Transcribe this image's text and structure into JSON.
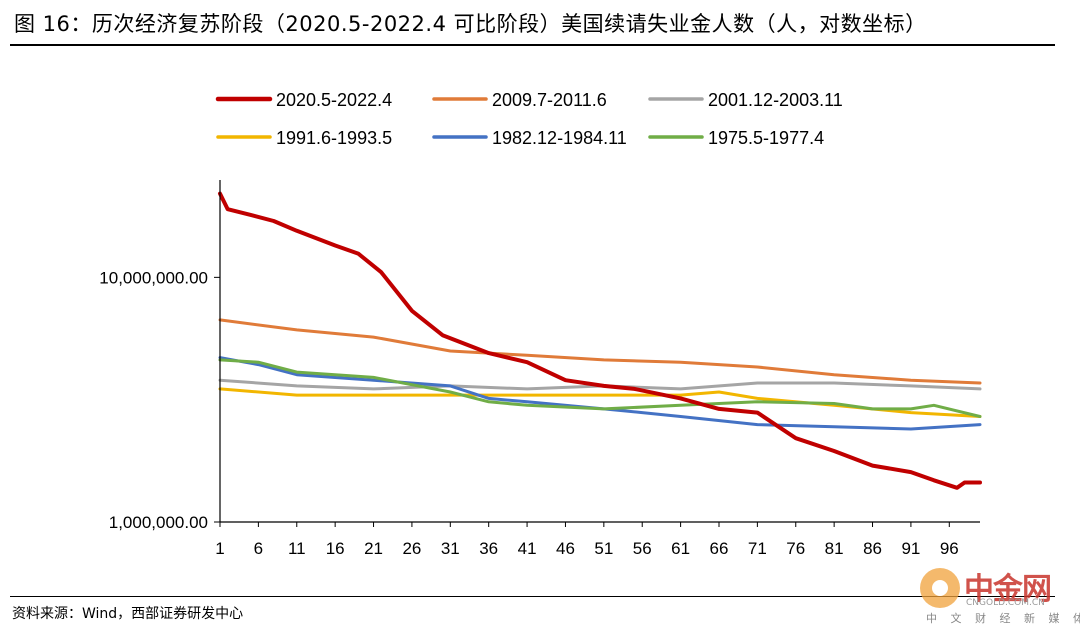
{
  "header": {
    "title": "图 16：历次经济复苏阶段（2020.5-2022.4 可比阶段）美国续请失业金人数（人，对数坐标）"
  },
  "footer": {
    "source": "资料来源：Wind，西部证券研发中心"
  },
  "watermark": {
    "brand": "中金网",
    "url": "CNGOLD.COM.CN",
    "sub": "中 文 财 经 新 媒 体"
  },
  "chart_data": {
    "type": "line",
    "title": "历次经济复苏阶段（2020.5-2022.4 可比阶段）美国续请失业金人数",
    "ylabel": "人（对数坐标）",
    "xlabel": "",
    "yscale": "log",
    "ylim": [
      1000000,
      25000000
    ],
    "xlim": [
      1,
      100
    ],
    "yticks": [
      1000000,
      10000000
    ],
    "ytick_labels": [
      "1,000,000.00",
      "10,000,000.00"
    ],
    "xticks": [
      1,
      6,
      11,
      16,
      21,
      26,
      31,
      36,
      41,
      46,
      51,
      56,
      61,
      66,
      71,
      76,
      81,
      86,
      91,
      96
    ],
    "legend_position": "top",
    "series": [
      {
        "name": "2020.5-2022.4",
        "color": "#c00000",
        "width": 4,
        "x": [
          1,
          2,
          5,
          8,
          11,
          16,
          19,
          22,
          26,
          30,
          36,
          41,
          46,
          51,
          55,
          61,
          66,
          71,
          76,
          81,
          86,
          91,
          94,
          97,
          98,
          100
        ],
        "values": [
          22000000,
          19000000,
          18000000,
          17000000,
          15500000,
          13500000,
          12500000,
          10500000,
          7300000,
          5800000,
          4900000,
          4500000,
          3800000,
          3600000,
          3500000,
          3200000,
          2900000,
          2800000,
          2200000,
          1950000,
          1700000,
          1600000,
          1480000,
          1380000,
          1450000,
          1450000
        ]
      },
      {
        "name": "2009.7-2011.6",
        "color": "#e07b39",
        "width": 3,
        "x": [
          1,
          11,
          21,
          31,
          41,
          51,
          61,
          71,
          81,
          91,
          100
        ],
        "values": [
          6700000,
          6100000,
          5700000,
          5000000,
          4800000,
          4600000,
          4500000,
          4300000,
          4000000,
          3800000,
          3700000
        ]
      },
      {
        "name": "2001.12-2003.11",
        "color": "#a5a5a5",
        "width": 3,
        "x": [
          1,
          11,
          21,
          31,
          41,
          51,
          61,
          71,
          81,
          91,
          100
        ],
        "values": [
          3800000,
          3600000,
          3500000,
          3600000,
          3500000,
          3600000,
          3500000,
          3700000,
          3700000,
          3600000,
          3500000
        ]
      },
      {
        "name": "1991.6-1993.5",
        "color": "#f2b600",
        "width": 3,
        "x": [
          1,
          11,
          21,
          31,
          41,
          51,
          61,
          66,
          71,
          81,
          91,
          100
        ],
        "values": [
          3500000,
          3300000,
          3300000,
          3300000,
          3300000,
          3300000,
          3300000,
          3400000,
          3200000,
          3000000,
          2800000,
          2700000
        ]
      },
      {
        "name": "1982.12-1984.11",
        "color": "#4472c4",
        "width": 3,
        "x": [
          1,
          6,
          11,
          21,
          31,
          36,
          41,
          51,
          56,
          61,
          71,
          81,
          91,
          100
        ],
        "values": [
          4700000,
          4400000,
          4000000,
          3800000,
          3600000,
          3200000,
          3100000,
          2900000,
          2800000,
          2700000,
          2500000,
          2450000,
          2400000,
          2500000
        ]
      },
      {
        "name": "1975.5-1977.4",
        "color": "#70ad47",
        "width": 3,
        "x": [
          1,
          6,
          11,
          16,
          21,
          31,
          36,
          41,
          51,
          61,
          71,
          81,
          86,
          91,
          94,
          100
        ],
        "values": [
          4600000,
          4500000,
          4100000,
          4000000,
          3900000,
          3400000,
          3100000,
          3000000,
          2900000,
          3000000,
          3100000,
          3050000,
          2900000,
          2900000,
          3000000,
          2700000
        ]
      }
    ]
  }
}
